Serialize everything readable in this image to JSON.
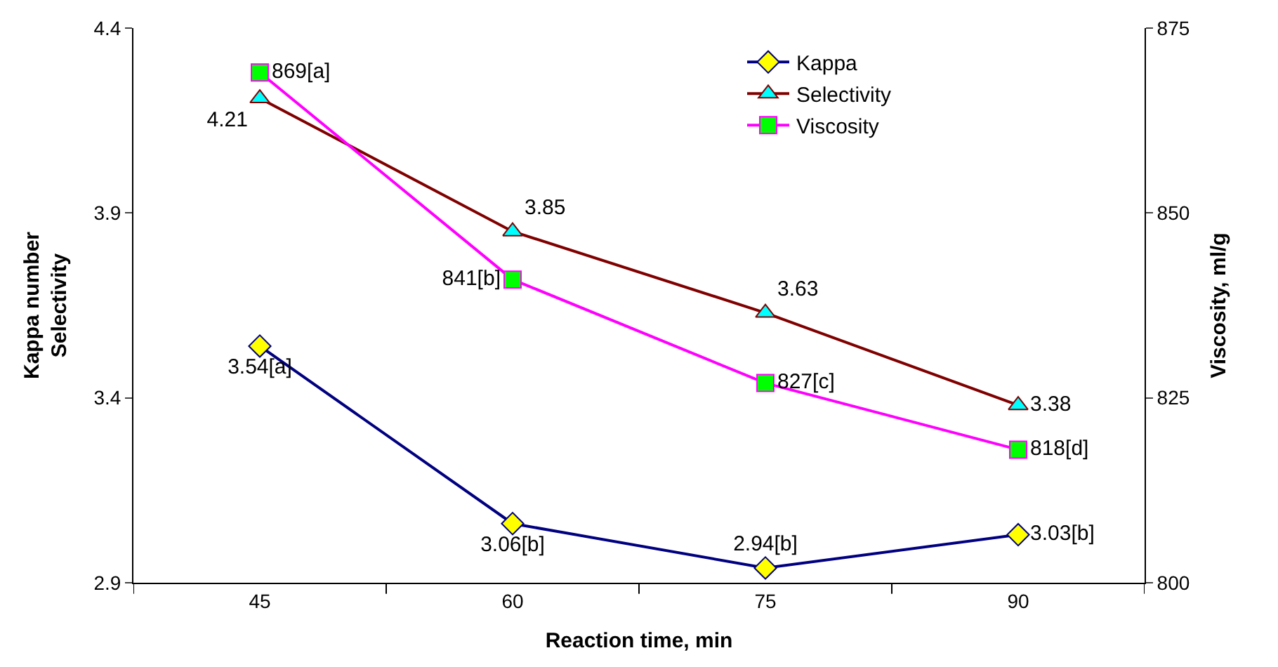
{
  "chart_data": {
    "type": "line",
    "categories": [
      "45",
      "60",
      "75",
      "90"
    ],
    "xlabel": "Reaction time, min",
    "ylabel": "Kappa number\nSelectivity",
    "y2label": "Viscosity, ml/g",
    "ylim": [
      2.9,
      4.4
    ],
    "yticks": [
      2.9,
      3.4,
      3.9,
      4.4
    ],
    "y2lim": [
      800,
      875
    ],
    "y2ticks": [
      800,
      825,
      850,
      875
    ],
    "legend": "top right",
    "series": [
      {
        "name": "Kappa",
        "color": "#000080",
        "colors": [
          "#ffff00",
          "#ffff00",
          "#ffff00",
          "#ffff00"
        ],
        "marker": "diamond",
        "values": [
          3.54,
          3.06,
          2.94,
          3.03
        ],
        "value_labels": [
          "3.54[a]",
          "3.06[b]",
          "2.94[b]",
          "3.03[b]"
        ]
      },
      {
        "name": "Selectivity",
        "color": "#800000",
        "colors": [
          "#00ffff",
          "#00ffff",
          "#00ffff",
          "#00ffff"
        ],
        "marker": "triangle",
        "values": [
          4.21,
          3.85,
          3.63,
          3.38
        ],
        "value_labels": [
          "4.21",
          "3.85",
          "3.63",
          "3.38"
        ]
      },
      {
        "name": "Viscosity",
        "color": "#ff00ff",
        "colors": [
          "#00ff00",
          "#00ff00",
          "#00ff00",
          "#00ff00"
        ],
        "marker": "square",
        "axis": "y2",
        "values": [
          869,
          841,
          827,
          818
        ],
        "value_labels": [
          "869[a]",
          "841[b]",
          "827[c]",
          "818[d]"
        ]
      }
    ]
  }
}
